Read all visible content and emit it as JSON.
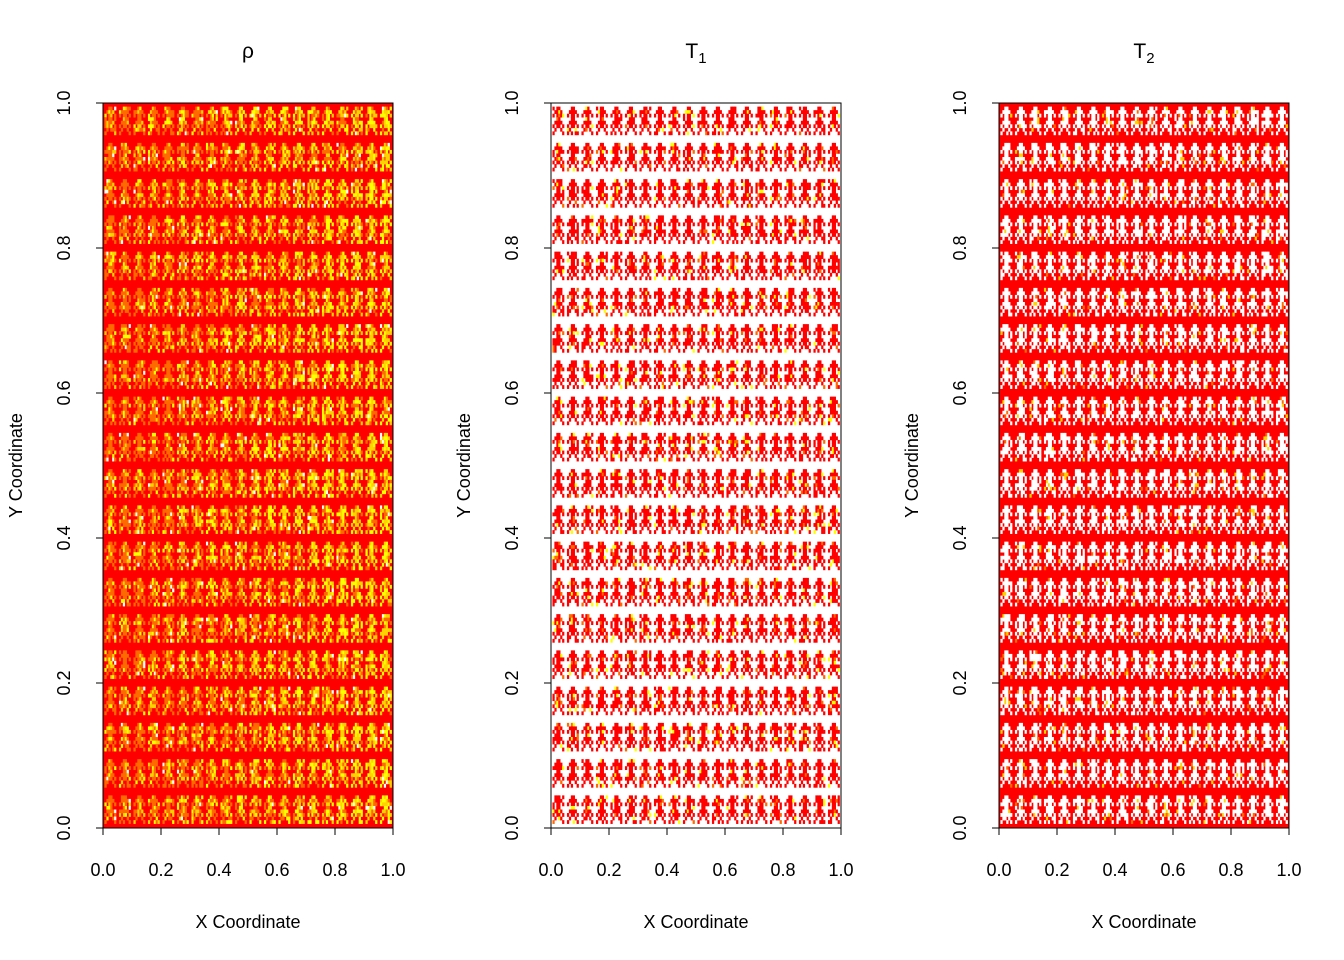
{
  "chart_data": [
    {
      "type": "heatmap",
      "title": "ρ",
      "subscript": "",
      "xlabel": "X Coordinate",
      "ylabel": "Y Coordinate",
      "xlim": [
        0,
        1
      ],
      "ylim": [
        0,
        1
      ],
      "xticks": [
        "0.0",
        "0.2",
        "0.4",
        "0.6",
        "0.8",
        "1.0"
      ],
      "yticks": [
        "0.0",
        "0.2",
        "0.4",
        "0.6",
        "0.8",
        "1.0"
      ],
      "x_cells": 20,
      "y_cells": 20,
      "background_color": "#ff0000",
      "colors": [
        "#ff0000",
        "#ff6a00",
        "#ffd200",
        "#ffff00",
        "#ffffff"
      ],
      "pattern": "repeating particle-like motifs of orange and yellow on red; yellow increases toward larger X"
    },
    {
      "type": "heatmap",
      "title": "T",
      "subscript": "1",
      "xlabel": "X Coordinate",
      "ylabel": "Y Coordinate",
      "xlim": [
        0,
        1
      ],
      "ylim": [
        0,
        1
      ],
      "xticks": [
        "0.0",
        "0.2",
        "0.4",
        "0.6",
        "0.8",
        "1.0"
      ],
      "yticks": [
        "0.0",
        "0.2",
        "0.4",
        "0.6",
        "0.8",
        "1.0"
      ],
      "x_cells": 20,
      "y_cells": 20,
      "background_color": "#ffffff",
      "colors": [
        "#ffffff",
        "#ff0000",
        "#ff6a00",
        "#ffff00"
      ],
      "pattern": "red particle-like motifs on a white background with sparse orange/yellow specks"
    },
    {
      "type": "heatmap",
      "title": "T",
      "subscript": "2",
      "xlabel": "X Coordinate",
      "ylabel": "Y Coordinate",
      "xlim": [
        0,
        1
      ],
      "ylim": [
        0,
        1
      ],
      "xticks": [
        "0.0",
        "0.2",
        "0.4",
        "0.6",
        "0.8",
        "1.0"
      ],
      "yticks": [
        "0.0",
        "0.2",
        "0.4",
        "0.6",
        "0.8",
        "1.0"
      ],
      "x_cells": 20,
      "y_cells": 20,
      "background_color": "#ff0000",
      "colors": [
        "#ff0000",
        "#ffffff",
        "#ffd200",
        "#ff6a00"
      ],
      "pattern": "white particle-like motifs on red with sparse orange/yellow specks"
    }
  ]
}
